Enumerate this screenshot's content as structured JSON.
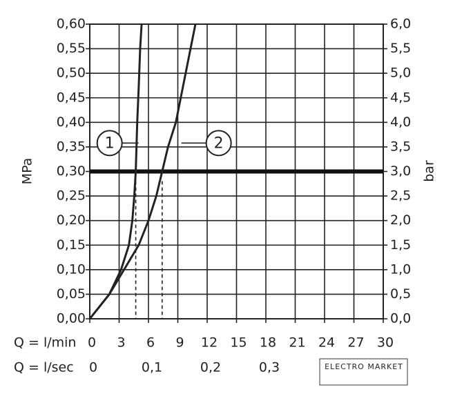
{
  "chart_data": {
    "type": "line",
    "y_label": "MPa",
    "y2_label": "bar",
    "x_label": "Q = l/min",
    "x2_label": "Q = l/sec",
    "watermark": "ELECTRO MARKET",
    "xlim": [
      0,
      30
    ],
    "xticks": [
      0,
      3,
      6,
      9,
      12,
      15,
      18,
      21,
      24,
      27,
      30
    ],
    "x2lim": [
      0,
      0.5
    ],
    "x2ticks": [
      0,
      {
        "value": 0.1,
        "label": "0,1"
      },
      {
        "value": 0.2,
        "label": "0,2"
      },
      {
        "value": 0.3,
        "label": "0,3"
      }
    ],
    "ylim": [
      0,
      0.6
    ],
    "yticks": [
      {
        "value": 0,
        "label": "0,00"
      },
      {
        "value": 0.05,
        "label": "0,05"
      },
      {
        "value": 0.1,
        "label": "0,10"
      },
      {
        "value": 0.15,
        "label": "0,15"
      },
      {
        "value": 0.2,
        "label": "0,20"
      },
      {
        "value": 0.25,
        "label": "0,25"
      },
      {
        "value": 0.3,
        "label": "0,30"
      },
      {
        "value": 0.35,
        "label": "0,35"
      },
      {
        "value": 0.4,
        "label": "0,40"
      },
      {
        "value": 0.45,
        "label": "0,45"
      },
      {
        "value": 0.5,
        "label": "0,50"
      },
      {
        "value": 0.55,
        "label": "0,55"
      },
      {
        "value": 0.6,
        "label": "0,60"
      }
    ],
    "y2lim": [
      0,
      6
    ],
    "y2ticks": [
      {
        "value": 0,
        "label": "0,0"
      },
      {
        "value": 0.5,
        "label": "0,5"
      },
      {
        "value": 1,
        "label": "1,0"
      },
      {
        "value": 1.5,
        "label": "1,5"
      },
      {
        "value": 2,
        "label": "2,0"
      },
      {
        "value": 2.5,
        "label": "2,5"
      },
      {
        "value": 3,
        "label": "3,0"
      },
      {
        "value": 3.5,
        "label": "3,5"
      },
      {
        "value": 4,
        "label": "4,0"
      },
      {
        "value": 4.5,
        "label": "4,5"
      },
      {
        "value": 5,
        "label": "5,0"
      },
      {
        "value": 5.5,
        "label": "5,5"
      },
      {
        "value": 6,
        "label": "6,0"
      }
    ],
    "reference_line": 0.3,
    "grid": true,
    "series": [
      {
        "name": "1",
        "color": "#222222",
        "x": [
          0,
          2,
          3.2,
          4,
          4.35,
          4.55,
          4.7,
          4.85,
          5.0,
          5.15,
          5.3
        ],
        "values": [
          0,
          0.05,
          0.1,
          0.15,
          0.2,
          0.25,
          0.3,
          0.4,
          0.47,
          0.55,
          0.6
        ]
      },
      {
        "name": "2",
        "color": "#222222",
        "x": [
          0,
          2,
          3.5,
          5,
          6,
          6.8,
          7.4,
          8,
          8.8,
          9.5,
          10.3,
          10.8
        ],
        "values": [
          0,
          0.05,
          0.1,
          0.15,
          0.2,
          0.25,
          0.3,
          0.35,
          0.4,
          0.47,
          0.55,
          0.6
        ]
      }
    ]
  }
}
